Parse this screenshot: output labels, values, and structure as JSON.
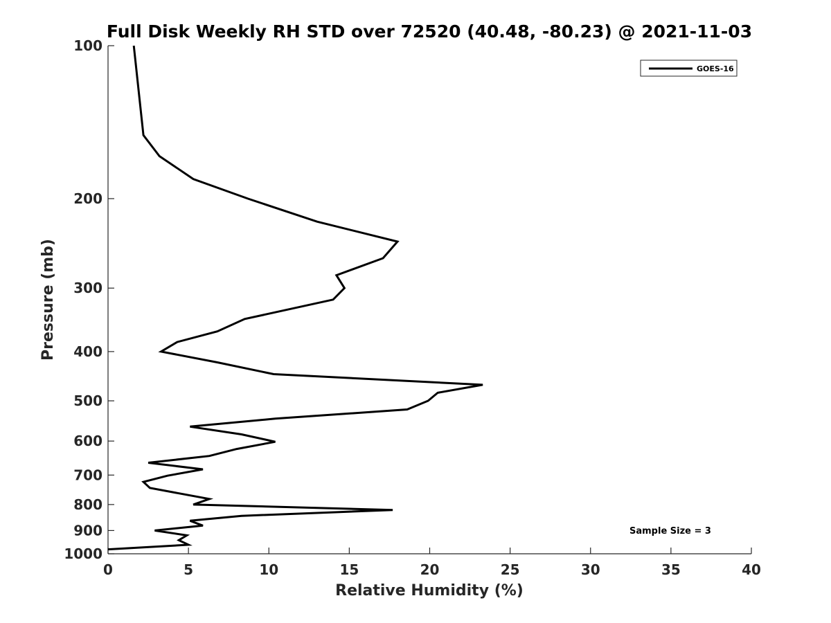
{
  "chart_data": {
    "type": "line",
    "title": "Full Disk Weekly RH STD over 72520 (40.48, -80.23) @ 2021-11-03",
    "xlabel": "Relative Humidity (%)",
    "ylabel": "Pressure (mb)",
    "xlim": [
      0,
      40
    ],
    "ylim": [
      100,
      1000
    ],
    "yscale": "log",
    "yreversed": true,
    "xticks": [
      0,
      5,
      10,
      15,
      20,
      25,
      30,
      35,
      40
    ],
    "xtick_labels": [
      "0",
      "5",
      "10",
      "15",
      "20",
      "25",
      "30",
      "35",
      "40"
    ],
    "yticks": [
      100,
      200,
      300,
      400,
      500,
      600,
      700,
      800,
      900,
      1000
    ],
    "ytick_labels": [
      "100",
      "200",
      "300",
      "400",
      "500",
      "600",
      "700",
      "800",
      "900",
      "1000"
    ],
    "grid": false,
    "legend_position": "top-right",
    "annotation": "Sample Size = 3",
    "series": [
      {
        "name": "GOES-16",
        "color": "#000000",
        "x": [
          1.6,
          2.2,
          3.2,
          5.3,
          8.7,
          13.0,
          18.0,
          17.1,
          14.2,
          14.7,
          14.0,
          8.5,
          6.8,
          4.3,
          3.3,
          6.8,
          10.3,
          23.3,
          20.5,
          19.9,
          18.6,
          10.4,
          5.1,
          8.3,
          10.4,
          8.0,
          6.3,
          2.5,
          5.9,
          3.7,
          2.2,
          2.6,
          6.3,
          5.3,
          17.7,
          8.3,
          5.1,
          5.9,
          2.9,
          4.9,
          4.4,
          5.0,
          0.0
        ],
        "y": [
          100,
          150,
          165,
          183,
          200,
          222,
          243,
          262,
          283,
          300,
          316,
          345,
          365,
          383,
          400,
          420,
          443,
          465,
          482,
          500,
          520,
          542,
          562,
          582,
          602,
          622,
          642,
          662,
          682,
          702,
          722,
          742,
          780,
          800,
          820,
          842,
          861,
          880,
          900,
          920,
          940,
          960,
          980
        ]
      }
    ]
  }
}
